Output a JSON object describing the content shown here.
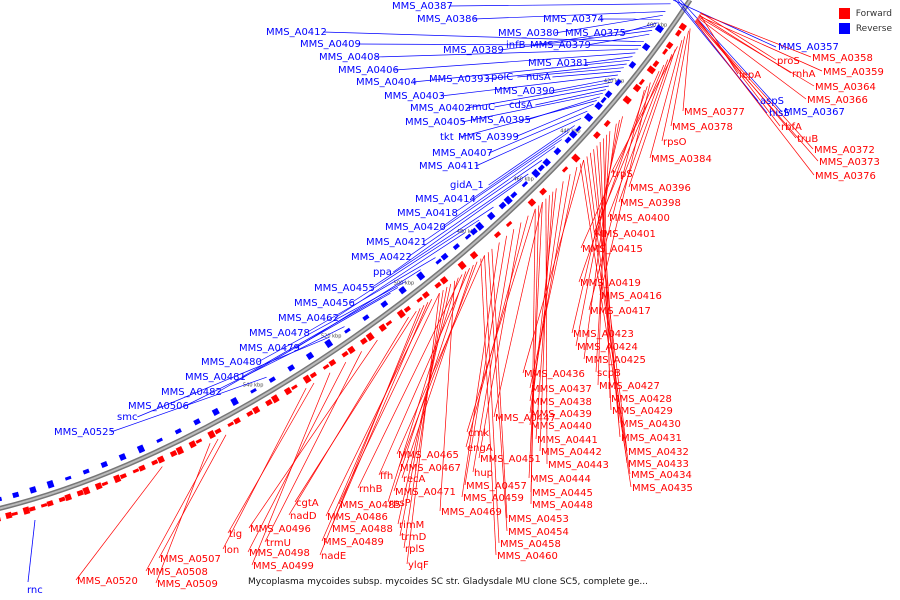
{
  "legend": {
    "forward_label": "Forward",
    "reverse_label": "Reverse",
    "forward_color": "#ff0000",
    "reverse_color": "#0000ff"
  },
  "caption": "Mycoplasma mycoides subsp. mycoides SC str. Gladysdale MU clone SC5, complete ge...",
  "ticks": [
    "400 kbp",
    "420 kbp",
    "440 kbp",
    "460 kbp",
    "480 kbp",
    "500 kbp",
    "520 kbp",
    "540 kbp"
  ],
  "reverse_labels": [
    "MMS_A0387",
    "MMS_A0386",
    "MMS_A0380",
    "MMS_A0374",
    "MMS_A0375",
    "infB",
    "MMS_A0389",
    "MMS_A0379",
    "MMS_A0412",
    "MMS_A0409",
    "MMS_A0408",
    "MMS_A0406",
    "MMS_A0381",
    "MMS_A0404",
    "MMS_A0393",
    "polC",
    "nusA",
    "MMS_A0403",
    "MMS_A0390",
    "MMS_A0402",
    "rmuC",
    "cdsA",
    "MMS_A0405",
    "MMS_A0395",
    "tkt",
    "MMS_A0399",
    "MMS_A0407",
    "MMS_A0411",
    "gidA_1",
    "MMS_A0414",
    "MMS_A0418",
    "MMS_A0420",
    "MMS_A0421",
    "MMS_A0422",
    "ppa",
    "MMS_A0455",
    "MMS_A0456",
    "MMS_A0462",
    "MMS_A0478",
    "MMS_A0479",
    "MMS_A0480",
    "MMS_A0481",
    "MMS_A0482",
    "MMS_A0506",
    "smc",
    "MMS_A0525",
    "rnc",
    "MMS_A0357",
    "aspS",
    "hisS",
    "MMS_A0367"
  ],
  "forward_labels": [
    "proS",
    "MMS_A0358",
    "lepA",
    "rnhA",
    "MMS_A0359",
    "MMS_A0364",
    "MMS_A0366",
    "MMS_A0377",
    "MMS_A0378",
    "rbfA",
    "truB",
    "MMS_A0372",
    "MMS_A0373",
    "MMS_A0376",
    "rpsO",
    "MMS_A0384",
    "trpS",
    "MMS_A0396",
    "MMS_A0398",
    "MMS_A0400",
    "MMS_A0401",
    "MMS_A0415",
    "MMS_A0419",
    "MMS_A0416",
    "MMS_A0417",
    "MMS_A0423",
    "MMS_A0424",
    "MMS_A0425",
    "scpB",
    "MMS_A0436",
    "MMS_A0427",
    "MMS_A0437",
    "MMS_A0428",
    "MMS_A0438",
    "MMS_A0429",
    "MMS_A0439",
    "MMS_A0430",
    "MMS_A0440",
    "MMS_A0431",
    "MMS_A0447",
    "MMS_A0441",
    "cmk",
    "MMS_A0442",
    "MMS_A0432",
    "engA",
    "MMS_A0443",
    "MMS_A0433",
    "MMS_A0451",
    "MMS_A0434",
    "hup",
    "MMS_A0444",
    "MMS_A0435",
    "MMS_A0465",
    "MMS_A0457",
    "MMS_A0445",
    "MMS_A0467",
    "recA",
    "ffh",
    "MMS_A0459",
    "MMS_A0448",
    "rnhB",
    "MMS_A0471",
    "MMS_A0485",
    "rpsP",
    "MMS_A0469",
    "MMS_A0453",
    "cgtA",
    "MMS_A0486",
    "MMS_A0454",
    "nadD",
    "rimM",
    "MMS_A0458",
    "MMS_A0496",
    "MMS_A0488",
    "trmD",
    "trmU",
    "MMS_A0489",
    "rplS",
    "ylqF",
    "MMS_A0460",
    "tig",
    "MMS_A0498",
    "nadE",
    "lon",
    "MMS_A0499",
    "MMS_A0507",
    "MMS_A0508",
    "MMS_A0509",
    "MMS_A0520"
  ]
}
